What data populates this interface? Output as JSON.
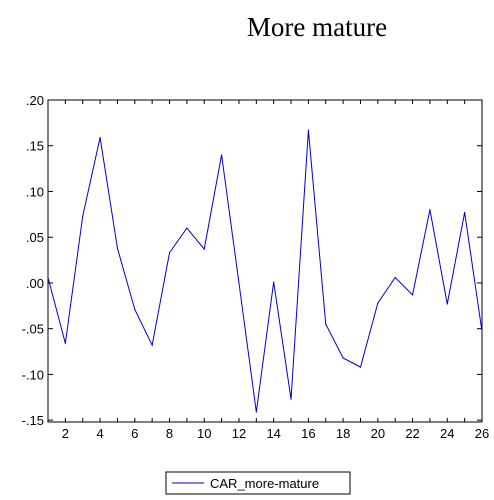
{
  "chart_data": {
    "type": "line",
    "title": "More mature",
    "x": [
      1,
      2,
      3,
      4,
      5,
      6,
      7,
      8,
      9,
      10,
      11,
      12,
      13,
      14,
      15,
      16,
      17,
      18,
      19,
      20,
      21,
      22,
      23,
      24,
      25,
      26
    ],
    "series": [
      {
        "name": "CAR_more-mature",
        "color": "#0000cc",
        "values": [
          0.006,
          -0.066,
          0.073,
          0.159,
          0.038,
          -0.029,
          -0.068,
          0.033,
          0.06,
          0.037,
          0.14,
          0.0,
          -0.141,
          0.001,
          -0.127,
          0.167,
          -0.045,
          -0.082,
          -0.092,
          -0.022,
          0.006,
          -0.013,
          0.08,
          -0.023,
          0.077,
          -0.053
        ]
      }
    ],
    "xlim": [
      1,
      26
    ],
    "ylim": [
      -0.152,
      0.2
    ],
    "yticks": [
      0.2,
      0.15,
      0.1,
      0.05,
      0.0,
      -0.05,
      -0.1,
      -0.15
    ],
    "ytick_labels": [
      ".20",
      ".15",
      ".10",
      ".05",
      ".00",
      "-.05",
      "-.10",
      "-.15"
    ],
    "xticks": [
      2,
      4,
      6,
      8,
      10,
      12,
      14,
      16,
      18,
      20,
      22,
      24,
      26
    ],
    "xtick_labels": [
      "2",
      "4",
      "6",
      "8",
      "10",
      "12",
      "14",
      "16",
      "18",
      "20",
      "22",
      "24",
      "26"
    ],
    "xlabel": "",
    "ylabel": "",
    "grid": false,
    "legend": "bottom"
  }
}
